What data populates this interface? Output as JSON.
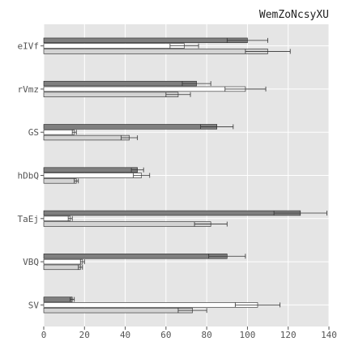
{
  "chart_data": {
    "type": "bar",
    "orientation": "horizontal",
    "title": "WemZoNcsyXU",
    "xlabel": "",
    "ylabel": "",
    "xlim": [
      0,
      140
    ],
    "xticks": [
      0,
      20,
      40,
      60,
      80,
      100,
      120,
      140
    ],
    "grid": true,
    "categories": [
      "SV",
      "VBQ",
      "TaEj",
      "hDbQ",
      "GS",
      "rVmz",
      "eIVf"
    ],
    "series": [
      {
        "color": "#7f7f7f",
        "values": [
          14,
          90,
          126,
          46,
          85,
          75,
          100
        ],
        "errors": [
          1,
          9,
          13,
          3,
          8,
          7,
          10
        ]
      },
      {
        "color": "#ffffff",
        "values": [
          105,
          19,
          13,
          48,
          15,
          99,
          69
        ],
        "errors": [
          11,
          1,
          1,
          4,
          1,
          10,
          7
        ]
      },
      {
        "color": "#d3d3d3",
        "values": [
          73,
          18,
          82,
          16,
          42,
          66,
          110
        ],
        "errors": [
          7,
          1,
          8,
          1,
          4,
          6,
          11
        ]
      }
    ],
    "colors": {
      "background": "#e5e5e5",
      "grid": "#ffffff",
      "errorbar": "#333333"
    }
  }
}
